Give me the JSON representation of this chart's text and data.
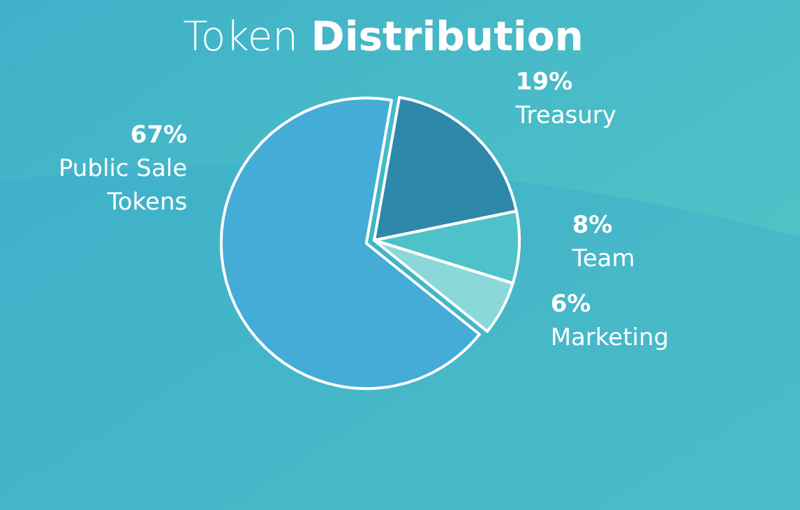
{
  "chart_data": {
    "type": "pie",
    "title": "Token Distribution",
    "categories": [
      "Treasury",
      "Team",
      "Marketing",
      "Public Sale Tokens"
    ],
    "values": [
      19,
      8,
      6,
      67
    ],
    "value_labels": [
      "19%",
      "8%",
      "6%",
      "67%"
    ],
    "colors": [
      "#2e88aa",
      "#4fc1c8",
      "#8ad8da",
      "#45acd8"
    ]
  }
}
